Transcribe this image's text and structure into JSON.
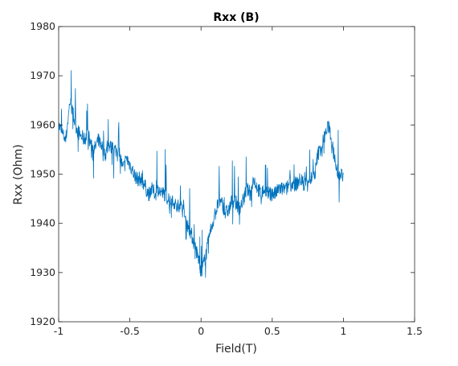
{
  "chart_data": {
    "type": "line",
    "title": "Rxx (B)",
    "xlabel": "Field(T)",
    "ylabel": "Rxx (Ohm)",
    "xlim": [
      -1,
      1.5
    ],
    "ylim": [
      1920,
      1980
    ],
    "xticks": [
      -1,
      -0.5,
      0,
      0.5,
      1,
      1.5
    ],
    "yticks": [
      1920,
      1930,
      1940,
      1950,
      1960,
      1970,
      1980
    ],
    "xtick_labels": [
      "-1",
      "-0.5",
      "0",
      "0.5",
      "1",
      "1.5"
    ],
    "ytick_labels": [
      "1920",
      "1930",
      "1940",
      "1950",
      "1960",
      "1970",
      "1980"
    ],
    "grid": false,
    "legend": "none",
    "line_color": "#0072BD",
    "series": [
      {
        "x": [
          -1.0,
          -0.97,
          -0.95,
          -0.92,
          -0.9,
          -0.87,
          -0.85,
          -0.82,
          -0.8,
          -0.77,
          -0.75,
          -0.72,
          -0.7,
          -0.67,
          -0.65,
          -0.62,
          -0.6,
          -0.57,
          -0.55,
          -0.52,
          -0.5,
          -0.47,
          -0.45,
          -0.42,
          -0.4,
          -0.37,
          -0.35,
          -0.32,
          -0.3,
          -0.27,
          -0.25,
          -0.22,
          -0.2,
          -0.17,
          -0.15,
          -0.12,
          -0.1,
          -0.07,
          -0.05,
          -0.03,
          -0.01,
          0.0,
          0.01,
          0.03,
          0.05,
          0.07,
          0.1,
          0.12,
          0.15,
          0.17,
          0.2,
          0.22,
          0.25,
          0.27,
          0.3,
          0.32,
          0.35,
          0.37,
          0.4,
          0.42,
          0.45,
          0.47,
          0.5,
          0.52,
          0.55,
          0.57,
          0.6,
          0.62,
          0.65,
          0.67,
          0.7,
          0.72,
          0.75,
          0.77,
          0.8,
          0.82,
          0.85,
          0.87,
          0.9,
          0.92,
          0.95,
          0.97,
          1.0
        ],
        "y": [
          1960,
          1958,
          1957,
          1965,
          1962,
          1959,
          1958,
          1957,
          1958,
          1956,
          1955,
          1957,
          1956,
          1954,
          1956,
          1955,
          1955,
          1954,
          1951,
          1953,
          1952,
          1950,
          1949,
          1949,
          1948,
          1946,
          1947,
          1946,
          1947,
          1946,
          1946,
          1944,
          1945,
          1943,
          1944,
          1942,
          1940,
          1938,
          1936,
          1934,
          1932,
          1930,
          1931,
          1933,
          1936,
          1939,
          1942,
          1944,
          1944,
          1942,
          1943,
          1945,
          1944,
          1943,
          1945,
          1947,
          1946,
          1949,
          1947,
          1946,
          1947,
          1946,
          1946,
          1946,
          1947,
          1947,
          1947,
          1948,
          1948,
          1948,
          1949,
          1948,
          1949,
          1949,
          1950,
          1954,
          1956,
          1958,
          1960,
          1956,
          1951,
          1950,
          1950
        ]
      }
    ]
  }
}
